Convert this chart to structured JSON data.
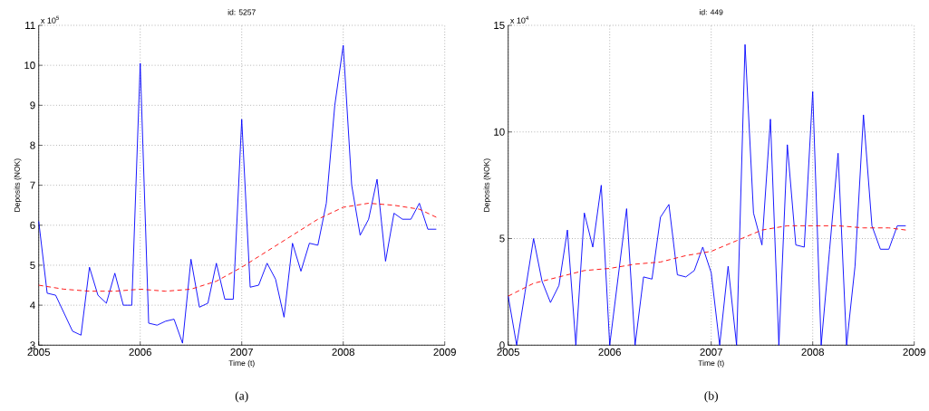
{
  "chart_data": [
    {
      "type": "line",
      "title": "id: 5257",
      "xlabel": "Time (t)",
      "ylabel": "Deposits (NOK)",
      "annotations": [
        "x 10$^{5}$",
        "(a)"
      ],
      "x": [
        "2005-01",
        "2005-02",
        "2005-03",
        "2005-04",
        "2005-05",
        "2005-06",
        "2005-07",
        "2005-08",
        "2005-09",
        "2005-10",
        "2005-11",
        "2005-12",
        "2006-01",
        "2006-02",
        "2006-03",
        "2006-04",
        "2006-05",
        "2006-06",
        "2006-07",
        "2006-08",
        "2006-09",
        "2006-10",
        "2006-11",
        "2006-12",
        "2007-01",
        "2007-02",
        "2007-03",
        "2007-04",
        "2007-05",
        "2007-06",
        "2007-07",
        "2007-08",
        "2007-09",
        "2007-10",
        "2007-11",
        "2007-12",
        "2008-01",
        "2008-02",
        "2008-03",
        "2008-04",
        "2008-05",
        "2008-06",
        "2008-07",
        "2008-08",
        "2008-09",
        "2008-10",
        "2008-11",
        "2008-12"
      ],
      "series": [
        {
          "color": "#0000ff",
          "line_style": "solid",
          "values": [
            6.1,
            4.3,
            4.25,
            3.8,
            3.35,
            3.25,
            4.95,
            4.25,
            4.05,
            4.8,
            4.0,
            4.0,
            10.05,
            3.55,
            3.5,
            3.6,
            3.65,
            3.05,
            5.15,
            3.95,
            4.05,
            5.05,
            4.15,
            4.15,
            8.65,
            4.45,
            4.5,
            5.05,
            4.65,
            3.7,
            5.55,
            4.85,
            5.55,
            5.5,
            6.55,
            9.0,
            10.5,
            7.0,
            5.75,
            6.15,
            7.15,
            5.1,
            6.3,
            6.15,
            6.15,
            6.55,
            5.9,
            5.9
          ]
        },
        {
          "color": "#ff0000",
          "line_style": "dashed",
          "x": [
            "2005-01",
            "2005-04",
            "2005-07",
            "2005-10",
            "2006-01",
            "2006-04",
            "2006-07",
            "2006-10",
            "2007-01",
            "2007-04",
            "2007-07",
            "2007-10",
            "2008-01",
            "2008-04",
            "2008-07",
            "2008-10",
            "2008-12"
          ],
          "values": [
            4.5,
            4.4,
            4.35,
            4.35,
            4.4,
            4.35,
            4.4,
            4.6,
            4.95,
            5.35,
            5.75,
            6.15,
            6.45,
            6.55,
            6.5,
            6.4,
            6.2
          ]
        }
      ],
      "xlim": [
        "2005",
        "2009"
      ],
      "ylim": [
        3,
        11
      ],
      "xticks": [
        "2005",
        "2006",
        "2007",
        "2008",
        "2009"
      ],
      "yticks": [
        3,
        4,
        5,
        6,
        7,
        8,
        9,
        10,
        11
      ],
      "grid": true
    },
    {
      "type": "line",
      "title": "id: 449",
      "xlabel": "Time (t)",
      "ylabel": "Deposits (NOK)",
      "annotations": [
        "x 10$^{4}$",
        "(b)"
      ],
      "x": [
        "2005-01",
        "2005-02",
        "2005-03",
        "2005-04",
        "2005-05",
        "2005-06",
        "2005-07",
        "2005-08",
        "2005-09",
        "2005-10",
        "2005-11",
        "2005-12",
        "2006-01",
        "2006-02",
        "2006-03",
        "2006-04",
        "2006-05",
        "2006-06",
        "2006-07",
        "2006-08",
        "2006-09",
        "2006-10",
        "2006-11",
        "2006-12",
        "2007-01",
        "2007-02",
        "2007-03",
        "2007-04",
        "2007-05",
        "2007-06",
        "2007-07",
        "2007-08",
        "2007-09",
        "2007-10",
        "2007-11",
        "2007-12",
        "2008-01",
        "2008-02",
        "2008-03",
        "2008-04",
        "2008-05",
        "2008-06",
        "2008-07",
        "2008-08",
        "2008-09",
        "2008-10",
        "2008-11",
        "2008-12"
      ],
      "series": [
        {
          "color": "#0000ff",
          "line_style": "solid",
          "values": [
            2.3,
            0,
            2.5,
            5.0,
            3.0,
            2.0,
            2.8,
            5.4,
            0,
            6.2,
            4.6,
            7.5,
            0,
            3.2,
            6.4,
            0,
            3.2,
            3.1,
            6.0,
            6.6,
            3.3,
            3.2,
            3.5,
            4.6,
            3.4,
            0,
            3.7,
            0,
            14.1,
            6.2,
            4.7,
            10.6,
            0,
            9.4,
            4.7,
            4.6,
            11.9,
            0,
            4.5,
            9.0,
            0,
            3.7,
            10.8,
            5.6,
            4.5,
            4.5,
            5.6,
            5.6
          ]
        },
        {
          "color": "#ff0000",
          "line_style": "dashed",
          "x": [
            "2005-01",
            "2005-04",
            "2005-07",
            "2005-10",
            "2006-01",
            "2006-04",
            "2006-07",
            "2006-10",
            "2007-01",
            "2007-04",
            "2007-07",
            "2007-10",
            "2008-01",
            "2008-04",
            "2008-07",
            "2008-10",
            "2008-12"
          ],
          "values": [
            2.3,
            2.9,
            3.2,
            3.5,
            3.6,
            3.8,
            3.9,
            4.2,
            4.4,
            4.9,
            5.4,
            5.6,
            5.6,
            5.6,
            5.5,
            5.5,
            5.4
          ]
        }
      ],
      "xlim": [
        "2005",
        "2009"
      ],
      "ylim": [
        0,
        15
      ],
      "xticks": [
        "2005",
        "2006",
        "2007",
        "2008",
        "2009"
      ],
      "yticks": [
        0,
        5,
        10,
        15
      ],
      "grid": true
    }
  ]
}
